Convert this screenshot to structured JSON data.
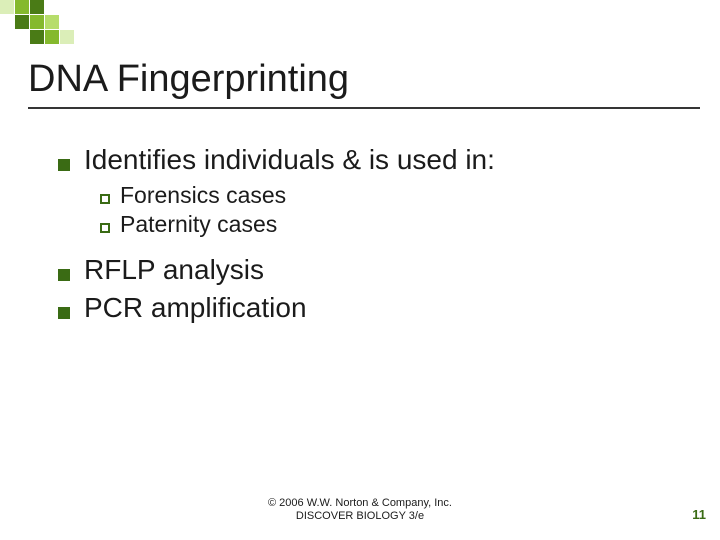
{
  "colors": {
    "logo_dark": "#4a7b16",
    "logo_mid": "#85b92e",
    "logo_light": "#b6dd6b",
    "logo_pale": "#dbeeb8",
    "bullet_square": "#3a6b14",
    "sub_outline": "#3a6b14",
    "pagenum": "#3a6b14"
  },
  "logo_grid": [
    [
      "pale",
      "mid",
      "dark",
      "",
      ""
    ],
    [
      "",
      "dark",
      "mid",
      "light",
      ""
    ],
    [
      "",
      "",
      "dark",
      "mid",
      "pale"
    ]
  ],
  "title": "DNA Fingerprinting",
  "bullets": [
    {
      "text": "Identifies individuals & is used in:",
      "subs": [
        "Forensics cases",
        "Paternity cases"
      ]
    },
    {
      "text": "RFLP analysis"
    },
    {
      "text": "PCR amplification"
    }
  ],
  "footer_line1": "© 2006 W.W. Norton & Company, Inc.",
  "footer_line2": "DISCOVER BIOLOGY 3/e",
  "page_number": "11"
}
